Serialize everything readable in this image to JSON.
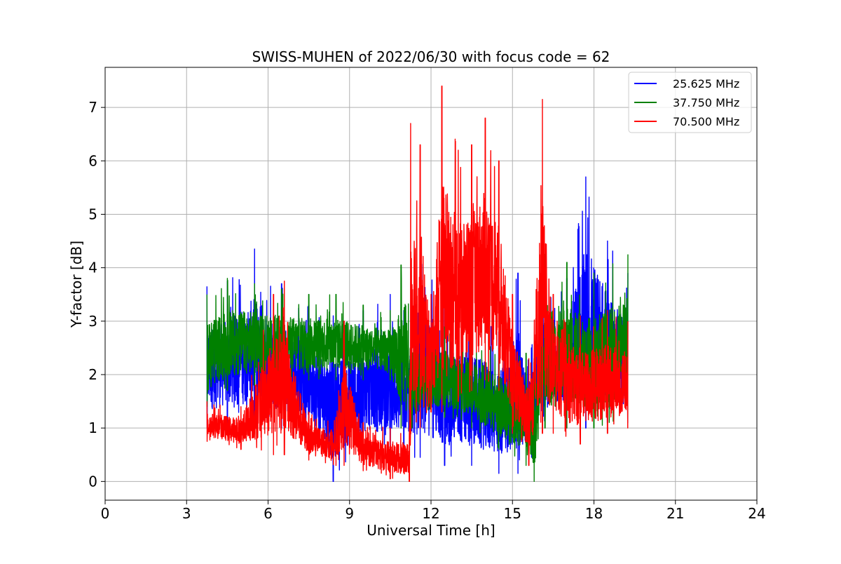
{
  "chart_data": {
    "type": "line",
    "title": "SWISS-MUHEN of 2022/06/30 with focus code = 62",
    "xlabel": "Universal Time [h]",
    "ylabel": "Y-factor [dB]",
    "xlim": [
      0,
      24
    ],
    "ylim": [
      -0.35,
      7.75
    ],
    "xticks": [
      0,
      3,
      6,
      9,
      12,
      15,
      18,
      21,
      24
    ],
    "yticks": [
      0,
      1,
      2,
      3,
      4,
      5,
      6,
      7
    ],
    "grid": true,
    "legend_position": "top-right",
    "x_range_of_data": [
      3.75,
      19.25
    ],
    "series": [
      {
        "name": "25.625 MHz",
        "color": "#0000ff",
        "envelope": [
          {
            "x": 3.75,
            "low": 1.0,
            "high": 3.65
          },
          {
            "x": 4.5,
            "low": 1.05,
            "high": 3.75
          },
          {
            "x": 5.5,
            "low": 1.05,
            "high": 4.35
          },
          {
            "x": 6.5,
            "low": 1.0,
            "high": 3.7
          },
          {
            "x": 7.5,
            "low": 0.9,
            "high": 3.3
          },
          {
            "x": 8.4,
            "low": 0.0,
            "high": 3.1
          },
          {
            "x": 9.5,
            "low": 0.6,
            "high": 3.2
          },
          {
            "x": 10.5,
            "low": 0.55,
            "high": 3.5
          },
          {
            "x": 11.0,
            "low": 0.55,
            "high": 3.2
          },
          {
            "x": 11.4,
            "low": 0.45,
            "high": 3.1
          },
          {
            "x": 11.6,
            "low": 0.45,
            "high": 4.35
          },
          {
            "x": 12.5,
            "low": 0.3,
            "high": 3.3
          },
          {
            "x": 13.5,
            "low": 0.3,
            "high": 3.2
          },
          {
            "x": 14.5,
            "low": 0.15,
            "high": 2.8
          },
          {
            "x": 15.2,
            "low": 0.15,
            "high": 3.9
          },
          {
            "x": 15.7,
            "low": 0.45,
            "high": 2.5
          },
          {
            "x": 16.1,
            "low": 1.0,
            "high": 4.0
          },
          {
            "x": 17.0,
            "low": 1.0,
            "high": 3.8
          },
          {
            "x": 17.7,
            "low": 1.0,
            "high": 5.7
          },
          {
            "x": 18.5,
            "low": 1.1,
            "high": 4.5
          },
          {
            "x": 19.25,
            "low": 1.1,
            "high": 3.9
          }
        ]
      },
      {
        "name": "37.750 MHz",
        "color": "#008000",
        "envelope": [
          {
            "x": 3.75,
            "low": 1.4,
            "high": 3.5
          },
          {
            "x": 4.5,
            "low": 1.7,
            "high": 3.8
          },
          {
            "x": 5.5,
            "low": 1.8,
            "high": 3.7
          },
          {
            "x": 6.5,
            "low": 1.8,
            "high": 3.6
          },
          {
            "x": 7.5,
            "low": 1.9,
            "high": 3.5
          },
          {
            "x": 8.5,
            "low": 1.9,
            "high": 3.5
          },
          {
            "x": 9.5,
            "low": 1.9,
            "high": 3.3
          },
          {
            "x": 10.5,
            "low": 1.9,
            "high": 3.2
          },
          {
            "x": 10.9,
            "low": 1.0,
            "high": 4.05
          },
          {
            "x": 11.3,
            "low": 1.0,
            "high": 3.0
          },
          {
            "x": 12.5,
            "low": 1.2,
            "high": 2.9
          },
          {
            "x": 13.5,
            "low": 1.0,
            "high": 2.8
          },
          {
            "x": 14.5,
            "low": 0.6,
            "high": 2.5
          },
          {
            "x": 15.5,
            "low": 0.3,
            "high": 2.4
          },
          {
            "x": 15.8,
            "low": 0.0,
            "high": 2.3
          },
          {
            "x": 16.2,
            "low": 1.0,
            "high": 4.25
          },
          {
            "x": 17.0,
            "low": 1.0,
            "high": 4.1
          },
          {
            "x": 18.0,
            "low": 1.0,
            "high": 3.9
          },
          {
            "x": 19.25,
            "low": 1.2,
            "high": 4.25
          }
        ]
      },
      {
        "name": "70.500 MHz",
        "color": "#ff0000",
        "envelope": [
          {
            "x": 3.75,
            "low": 0.75,
            "high": 1.5
          },
          {
            "x": 5.0,
            "low": 0.6,
            "high": 1.4
          },
          {
            "x": 6.2,
            "low": 0.5,
            "high": 3.5
          },
          {
            "x": 6.6,
            "low": 0.5,
            "high": 3.75
          },
          {
            "x": 7.5,
            "low": 0.4,
            "high": 1.3
          },
          {
            "x": 8.5,
            "low": 0.3,
            "high": 1.2
          },
          {
            "x": 8.8,
            "low": 0.3,
            "high": 3.0
          },
          {
            "x": 9.5,
            "low": 0.2,
            "high": 1.1
          },
          {
            "x": 10.5,
            "low": 0.05,
            "high": 1.0
          },
          {
            "x": 11.2,
            "low": 0.0,
            "high": 1.0
          },
          {
            "x": 11.25,
            "low": 0.9,
            "high": 6.7
          },
          {
            "x": 11.6,
            "low": 1.0,
            "high": 6.3
          },
          {
            "x": 12.0,
            "low": 1.3,
            "high": 3.5
          },
          {
            "x": 12.4,
            "low": 1.3,
            "high": 7.4
          },
          {
            "x": 13.0,
            "low": 1.5,
            "high": 6.2
          },
          {
            "x": 13.5,
            "low": 1.7,
            "high": 6.3
          },
          {
            "x": 14.0,
            "low": 1.9,
            "high": 6.8
          },
          {
            "x": 14.5,
            "low": 1.7,
            "high": 6.0
          },
          {
            "x": 15.0,
            "low": 0.9,
            "high": 3.5
          },
          {
            "x": 15.6,
            "low": 0.3,
            "high": 2.3
          },
          {
            "x": 16.1,
            "low": 0.9,
            "high": 7.15
          },
          {
            "x": 16.5,
            "low": 0.9,
            "high": 3.5
          },
          {
            "x": 17.5,
            "low": 0.7,
            "high": 3.1
          },
          {
            "x": 18.5,
            "low": 0.9,
            "high": 3.2
          },
          {
            "x": 19.25,
            "low": 1.0,
            "high": 3.0
          }
        ]
      }
    ]
  }
}
